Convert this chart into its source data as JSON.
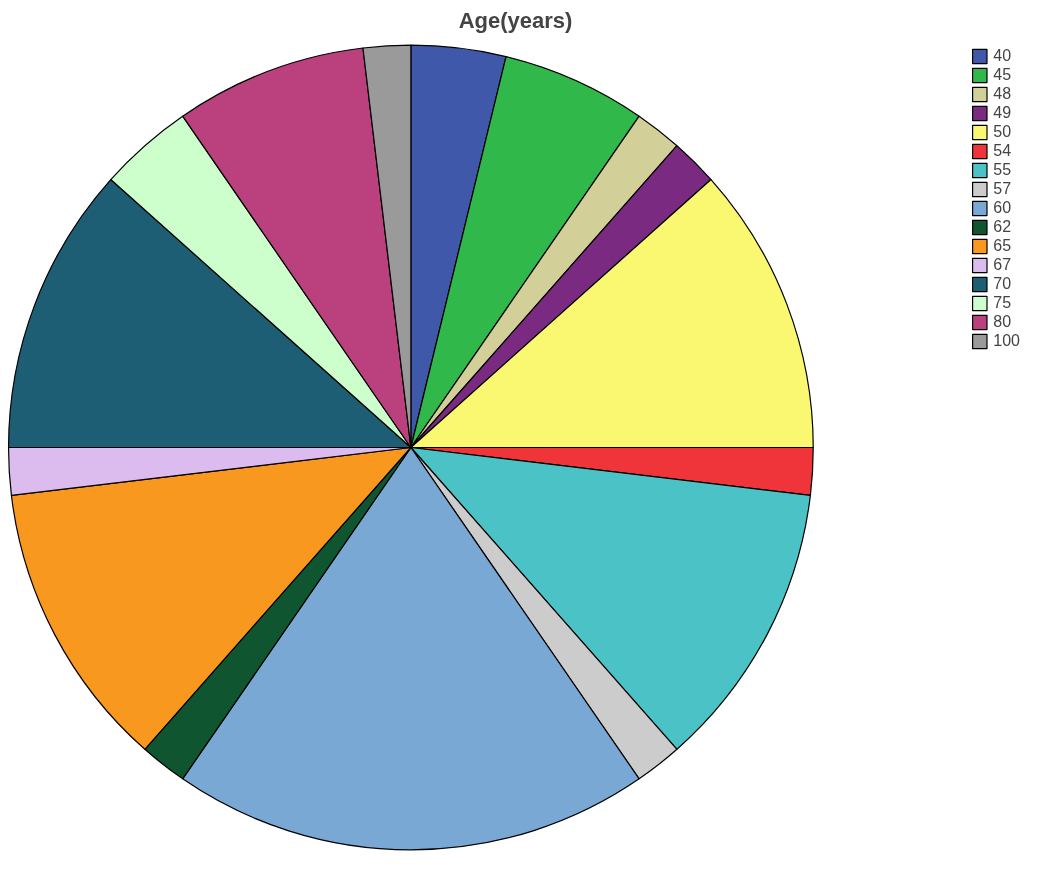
{
  "chart_data": {
    "type": "pie",
    "title": "Age(years)",
    "categories": [
      "40",
      "45",
      "48",
      "49",
      "50",
      "54",
      "55",
      "57",
      "60",
      "62",
      "65",
      "67",
      "70",
      "75",
      "80",
      "100"
    ],
    "values": [
      3.8,
      5.8,
      1.9,
      1.9,
      11.6,
      1.9,
      11.6,
      1.9,
      19.2,
      1.9,
      11.6,
      1.9,
      11.6,
      3.8,
      7.7,
      1.9
    ],
    "colors": [
      "#3f58aa",
      "#30b84a",
      "#d2cf98",
      "#7a2a80",
      "#faf771",
      "#f0353a",
      "#4bc2c6",
      "#cccccc",
      "#7aa8d5",
      "#0f5530",
      "#f8981f",
      "#dcbcef",
      "#1e5e75",
      "#ccffcc",
      "#ba417e",
      "#9a9a9a"
    ],
    "legend": "top right"
  }
}
